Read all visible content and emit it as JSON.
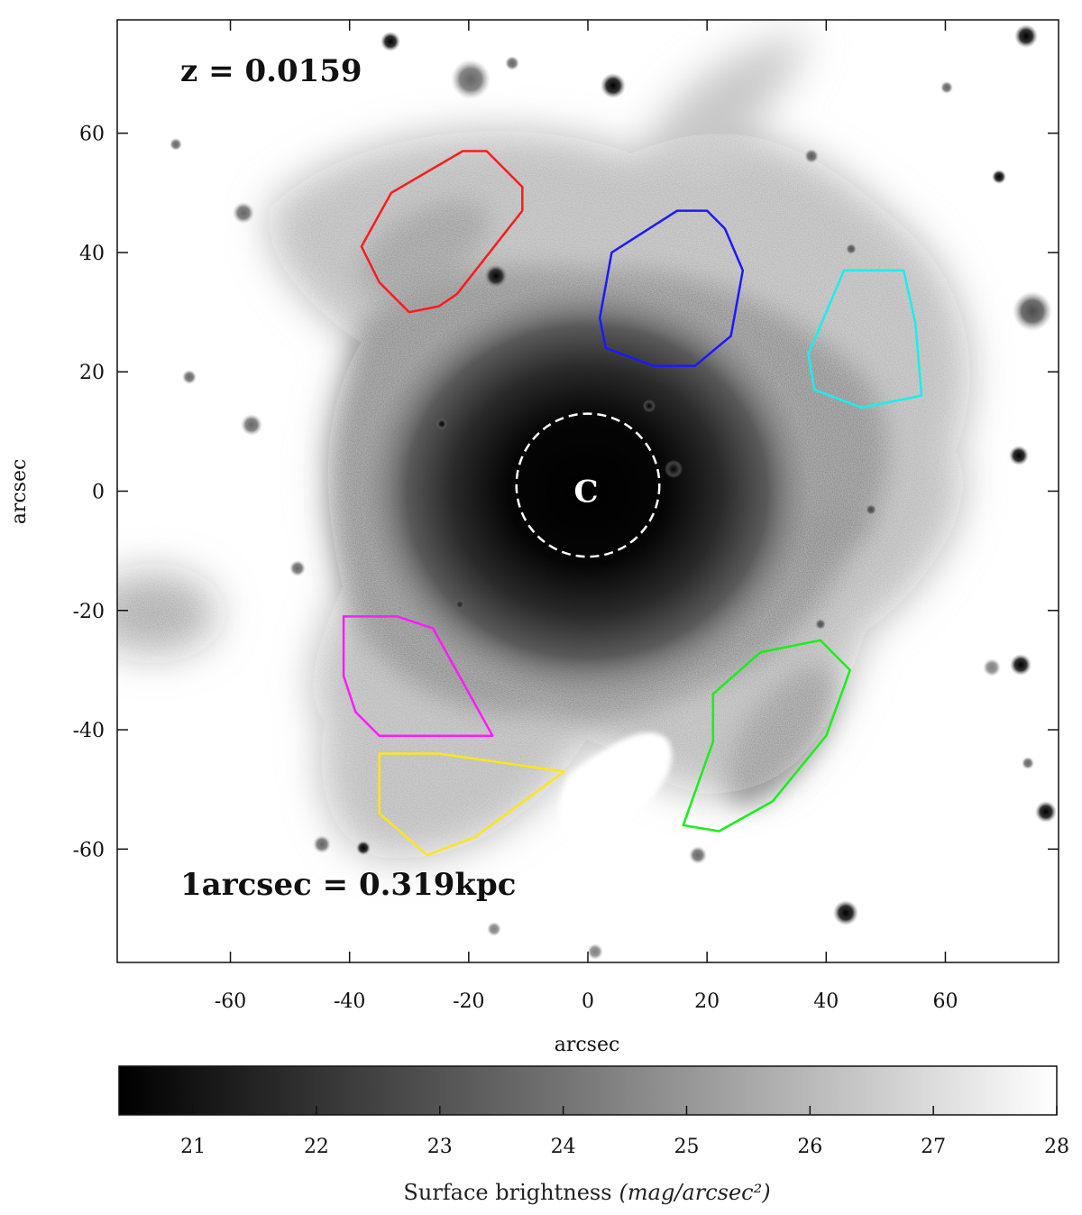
{
  "figure": {
    "annotation_redshift": "z = 0.0159",
    "annotation_scale": "1arcsec = 0.319kpc",
    "center_marker": "C",
    "xlabel": "arcsec",
    "ylabel": "arcsec",
    "colorbar_label_text": "Surface brightness",
    "colorbar_label_unit": "(mag/arcsec²)",
    "colormap": "gray",
    "colorbar_range": [
      20.4,
      28
    ],
    "background_color": "#ffffff"
  },
  "axes": {
    "xlim": [
      -79,
      79
    ],
    "ylim": [
      -79,
      79
    ],
    "xticks": [
      -60,
      -40,
      -20,
      0,
      20,
      40,
      60
    ],
    "yticks": [
      60,
      40,
      20,
      0,
      -20,
      -40,
      -60
    ],
    "cbar_ticks": [
      21,
      22,
      23,
      24,
      25,
      26,
      27,
      28
    ]
  },
  "regions": [
    {
      "name": "red-region",
      "color": "#ff1a1a",
      "points": [
        [
          -38,
          41
        ],
        [
          -33,
          50
        ],
        [
          -21,
          57
        ],
        [
          -17,
          57
        ],
        [
          -11,
          51
        ],
        [
          -11,
          47
        ],
        [
          -22,
          33
        ],
        [
          -25,
          31
        ],
        [
          -30,
          30
        ],
        [
          -35,
          35
        ]
      ]
    },
    {
      "name": "blue-region",
      "color": "#1a1aff",
      "points": [
        [
          4,
          40
        ],
        [
          15,
          47
        ],
        [
          20,
          47
        ],
        [
          23,
          44
        ],
        [
          26,
          37
        ],
        [
          24,
          26
        ],
        [
          18,
          21
        ],
        [
          11,
          21
        ],
        [
          3,
          24
        ],
        [
          2,
          29
        ]
      ]
    },
    {
      "name": "cyan-region",
      "color": "#1aeeee",
      "points": [
        [
          43,
          37
        ],
        [
          53,
          37
        ],
        [
          55,
          28
        ],
        [
          56,
          16
        ],
        [
          46,
          14
        ],
        [
          38,
          17
        ],
        [
          37,
          23
        ]
      ]
    },
    {
      "name": "magenta-region",
      "color": "#ff1aff",
      "points": [
        [
          -41,
          -21
        ],
        [
          -32,
          -21
        ],
        [
          -26,
          -23
        ],
        [
          -16,
          -41
        ],
        [
          -35,
          -41
        ],
        [
          -39,
          -37
        ],
        [
          -41,
          -31
        ]
      ]
    },
    {
      "name": "yellow-region",
      "color": "#ffe51a",
      "points": [
        [
          -35,
          -44
        ],
        [
          -25,
          -44
        ],
        [
          -4,
          -47
        ],
        [
          -19,
          -58
        ],
        [
          -27,
          -61
        ],
        [
          -35,
          -54
        ]
      ]
    },
    {
      "name": "green-region",
      "color": "#1aee1a",
      "points": [
        [
          21,
          -34
        ],
        [
          29,
          -27
        ],
        [
          39,
          -25
        ],
        [
          44,
          -30
        ],
        [
          40,
          -41
        ],
        [
          31,
          -52
        ],
        [
          22,
          -57
        ],
        [
          16,
          -56
        ],
        [
          21,
          -42
        ]
      ]
    }
  ],
  "aperture": {
    "name": "inner-dashed-circle",
    "center": [
      0,
      1
    ],
    "radius": 12,
    "color": "#ffffff"
  }
}
